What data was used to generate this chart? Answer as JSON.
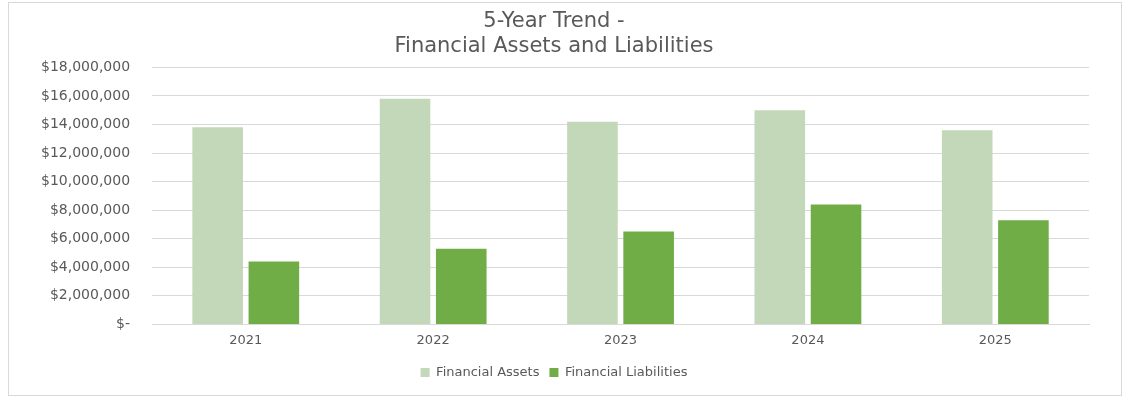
{
  "chart_data": {
    "type": "bar",
    "title": "5-Year Trend -\nFinancial Assets and Liabilities",
    "categories": [
      "2021",
      "2022",
      "2023",
      "2024",
      "2025"
    ],
    "series": [
      {
        "name": "Financial Assets",
        "color": "#c3d7b9",
        "values": [
          13800000,
          15800000,
          14200000,
          15000000,
          13600000
        ]
      },
      {
        "name": "Financial Liabilities",
        "color": "#70ad47",
        "values": [
          4400000,
          5300000,
          6500000,
          8400000,
          7300000
        ]
      }
    ],
    "ylim": [
      0,
      18000000
    ],
    "yticks": [
      {
        "value": 0,
        "label": "$-"
      },
      {
        "value": 2000000,
        "label": "$2,000,000"
      },
      {
        "value": 4000000,
        "label": "$4,000,000"
      },
      {
        "value": 6000000,
        "label": "$6,000,000"
      },
      {
        "value": 8000000,
        "label": "$8,000,000"
      },
      {
        "value": 10000000,
        "label": "$10,000,000"
      },
      {
        "value": 12000000,
        "label": "$12,000,000"
      },
      {
        "value": 14000000,
        "label": "$14,000,000"
      },
      {
        "value": 16000000,
        "label": "$16,000,000"
      },
      {
        "value": 18000000,
        "label": "$18,000,000"
      }
    ],
    "grid": "y",
    "legend": "bottom"
  }
}
